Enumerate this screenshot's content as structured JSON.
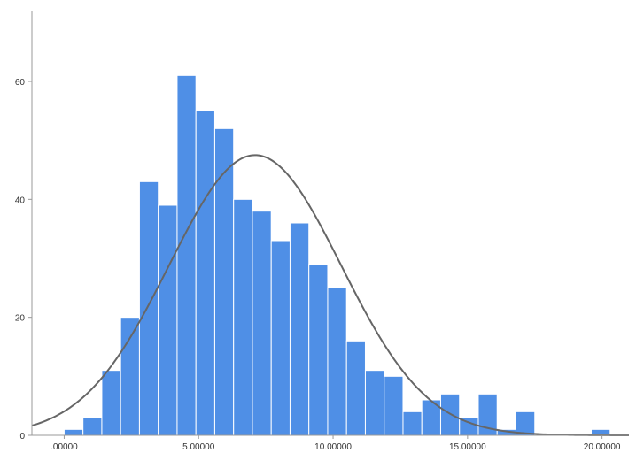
{
  "chart_data": {
    "type": "bar",
    "subtype": "histogram-with-normal-curve",
    "title": "",
    "xlabel": "",
    "ylabel": "",
    "bin_width": 0.7,
    "bins": [
      {
        "x": 0.35,
        "count": 1
      },
      {
        "x": 1.05,
        "count": 3
      },
      {
        "x": 1.75,
        "count": 11
      },
      {
        "x": 2.45,
        "count": 20
      },
      {
        "x": 3.15,
        "count": 43
      },
      {
        "x": 3.85,
        "count": 39
      },
      {
        "x": 4.55,
        "count": 61
      },
      {
        "x": 5.25,
        "count": 55
      },
      {
        "x": 5.95,
        "count": 52
      },
      {
        "x": 6.65,
        "count": 40
      },
      {
        "x": 7.35,
        "count": 38
      },
      {
        "x": 8.05,
        "count": 33
      },
      {
        "x": 8.75,
        "count": 36
      },
      {
        "x": 9.45,
        "count": 29
      },
      {
        "x": 10.15,
        "count": 25
      },
      {
        "x": 10.85,
        "count": 16
      },
      {
        "x": 11.55,
        "count": 11
      },
      {
        "x": 12.25,
        "count": 10
      },
      {
        "x": 12.95,
        "count": 4
      },
      {
        "x": 13.65,
        "count": 6
      },
      {
        "x": 14.35,
        "count": 7
      },
      {
        "x": 15.05,
        "count": 3
      },
      {
        "x": 15.75,
        "count": 7
      },
      {
        "x": 16.45,
        "count": 1
      },
      {
        "x": 17.15,
        "count": 4
      },
      {
        "x": 19.95,
        "count": 1
      }
    ],
    "normal_curve": {
      "mean": 7.1,
      "sd": 3.2,
      "peak": 47.5
    },
    "xlim": [
      -1.2,
      21
    ],
    "ylim": [
      0,
      72
    ],
    "x_ticks": [
      {
        "value": 0,
        "label": ".00000"
      },
      {
        "value": 5,
        "label": "5.00000"
      },
      {
        "value": 10,
        "label": "10.00000"
      },
      {
        "value": 15,
        "label": "15.00000"
      },
      {
        "value": 20,
        "label": "20.00000"
      }
    ],
    "y_ticks": [
      {
        "value": 0,
        "label": "0"
      },
      {
        "value": 20,
        "label": "20"
      },
      {
        "value": 40,
        "label": "40"
      },
      {
        "value": 60,
        "label": "60"
      }
    ],
    "colors": {
      "bar": "#4f8fe6",
      "bar_edge": "#ffffff",
      "curve": "#666666",
      "axis": "#999999"
    },
    "grid": false,
    "legend": "none"
  }
}
